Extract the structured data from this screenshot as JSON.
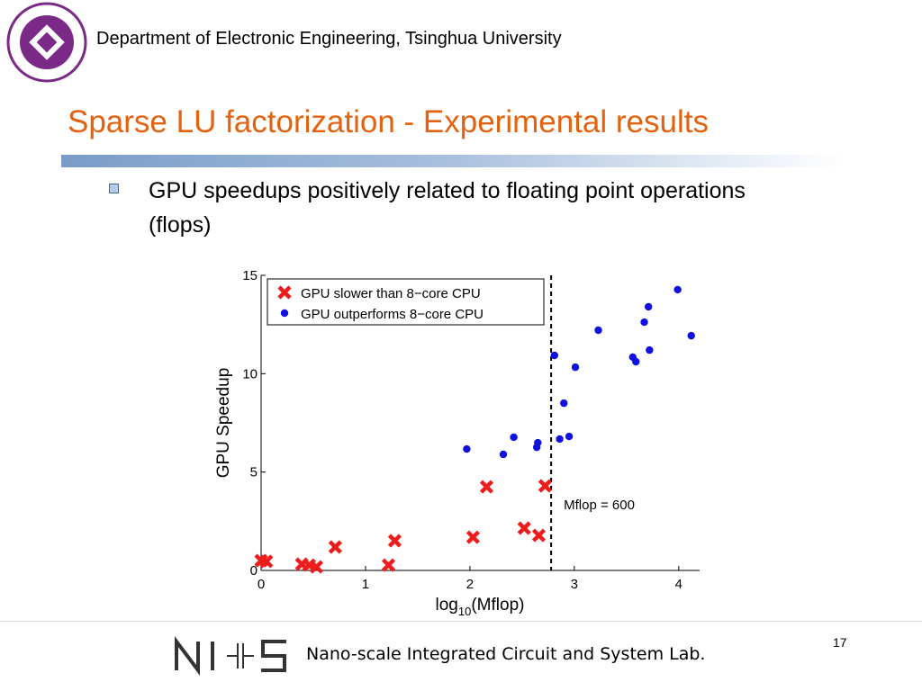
{
  "header": {
    "department": "Department of Electronic Engineering, Tsinghua University"
  },
  "title": "Sparse LU factorization - Experimental results",
  "bullet": "GPU speedups positively related to floating point operations (flops)",
  "footer": {
    "lab": "Nano-scale Integrated Circuit and System Lab.",
    "page": "17"
  },
  "chart_data": {
    "type": "scatter",
    "ylabel": "GPU Speedup",
    "xlabel_parts": [
      "log",
      "10",
      "(Mflop)"
    ],
    "xlim": [
      0,
      4.2
    ],
    "ylim": [
      0,
      15
    ],
    "xticks": [
      0,
      1,
      2,
      3,
      4
    ],
    "yticks": [
      0,
      5,
      10,
      15
    ],
    "threshold_x": 2.778,
    "annotation": "Mflop = 600",
    "legend": "top-left",
    "series": [
      {
        "name": "GPU slower than 8−core CPU",
        "color": "#ee1c1c",
        "marker": "x",
        "x": [
          0,
          0.05,
          0.39,
          0.46,
          0.53,
          0.71,
          1.22,
          1.28,
          2.03,
          2.16,
          2.52,
          2.66,
          2.72
        ],
        "values": [
          0.5,
          0.46,
          0.32,
          0.27,
          0.18,
          1.19,
          0.27,
          1.51,
          1.69,
          4.25,
          2.15,
          1.78,
          4.3
        ]
      },
      {
        "name": "GPU outperforms 8−core CPU",
        "color": "#1010e0",
        "marker": "o",
        "x": [
          1.97,
          2.32,
          2.42,
          2.64,
          2.65,
          2.81,
          2.86,
          2.9,
          2.95,
          3.01,
          3.23,
          3.56,
          3.59,
          3.67,
          3.71,
          3.72,
          3.99,
          4.12
        ],
        "values": [
          6.17,
          5.9,
          6.77,
          6.26,
          6.49,
          10.93,
          6.68,
          8.5,
          6.81,
          10.33,
          12.21,
          10.84,
          10.61,
          12.62,
          13.4,
          11.2,
          14.27,
          11.93
        ]
      }
    ]
  }
}
